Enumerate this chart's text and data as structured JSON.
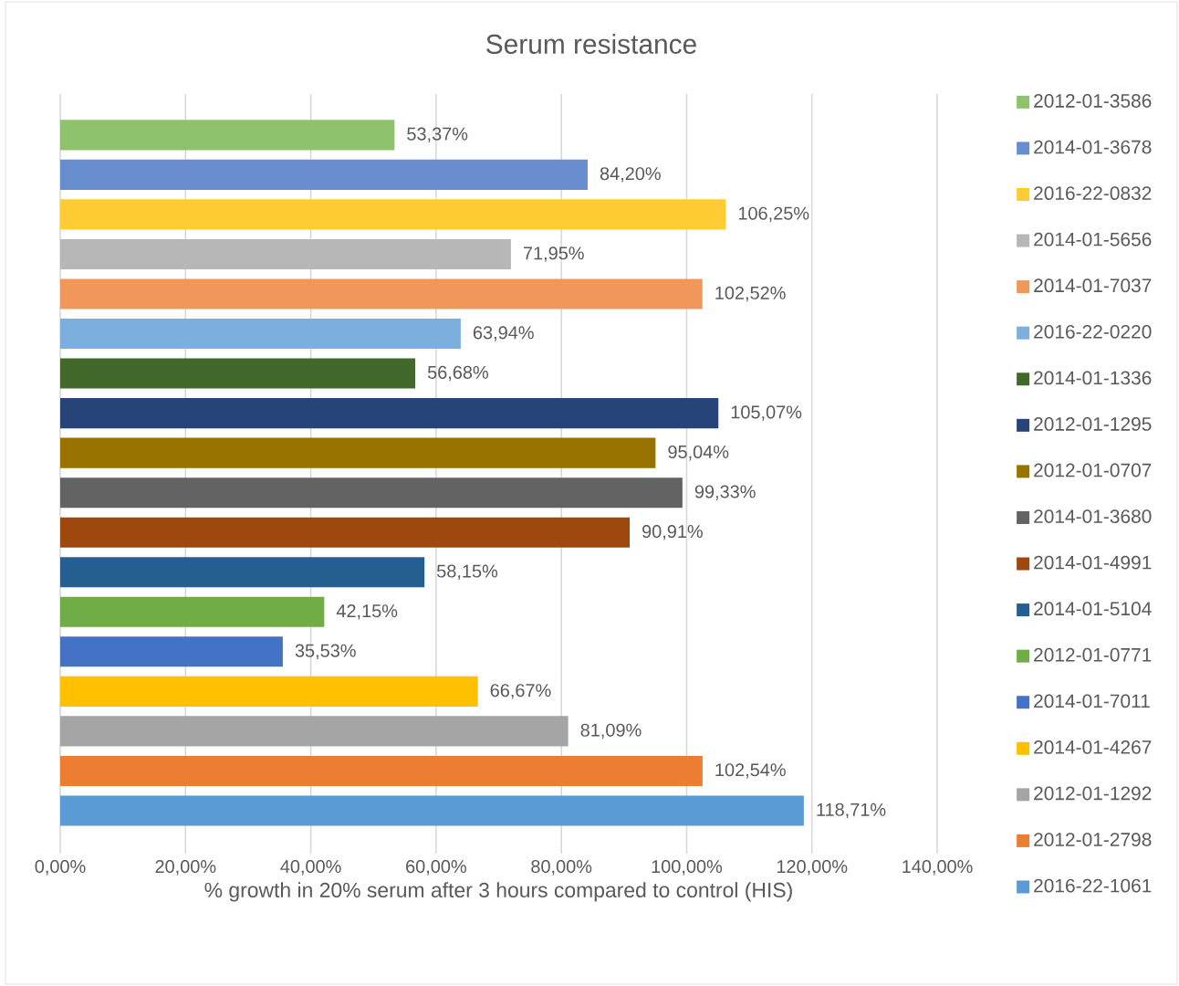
{
  "chart_data": {
    "type": "bar",
    "orientation": "horizontal",
    "title": "Serum resistance",
    "xlabel": "% growth in 20% serum after 3 hours compared to control (HIS)",
    "categories": [
      null
    ],
    "xlim": [
      0,
      140
    ],
    "xticks": [
      {
        "value": 0,
        "label": "0,00%"
      },
      {
        "value": 20,
        "label": "20,00%"
      },
      {
        "value": 40,
        "label": "40,00%"
      },
      {
        "value": 60,
        "label": "60,00%"
      },
      {
        "value": 80,
        "label": "80,00%"
      },
      {
        "value": 100,
        "label": "100,00%"
      },
      {
        "value": 120,
        "label": "120,00%"
      },
      {
        "value": 140,
        "label": "140,00%"
      }
    ],
    "grid": "x",
    "legend": "right",
    "series": [
      {
        "name": "2012-01-3586",
        "color": "#8fc36b",
        "values": [
          53.37
        ],
        "value_labels": [
          "53,37%"
        ]
      },
      {
        "name": "2014-01-3678",
        "color": "#698ed0",
        "values": [
          84.2
        ],
        "value_labels": [
          "84,20%"
        ]
      },
      {
        "name": "2016-22-0832",
        "color": "#ffcd33",
        "values": [
          106.25
        ],
        "value_labels": [
          "106,25%"
        ]
      },
      {
        "name": "2014-01-5656",
        "color": "#b7b7b7",
        "values": [
          71.95
        ],
        "value_labels": [
          "71,95%"
        ]
      },
      {
        "name": "2014-01-7037",
        "color": "#f1975a",
        "values": [
          102.52
        ],
        "value_labels": [
          "102,52%"
        ]
      },
      {
        "name": "2016-22-0220",
        "color": "#7cafdd",
        "values": [
          63.94
        ],
        "value_labels": [
          "63,94%"
        ]
      },
      {
        "name": "2014-01-1336",
        "color": "#43682b",
        "values": [
          56.68
        ],
        "value_labels": [
          "56,68%"
        ]
      },
      {
        "name": "2012-01-1295",
        "color": "#264478",
        "values": [
          105.07
        ],
        "value_labels": [
          "105,07%"
        ]
      },
      {
        "name": "2012-01-0707",
        "color": "#997300",
        "values": [
          95.04
        ],
        "value_labels": [
          "95,04%"
        ]
      },
      {
        "name": "2014-01-3680",
        "color": "#636363",
        "values": [
          99.33
        ],
        "value_labels": [
          "99,33%"
        ]
      },
      {
        "name": "2014-01-4991",
        "color": "#9e480e",
        "values": [
          90.91
        ],
        "value_labels": [
          "90,91%"
        ]
      },
      {
        "name": "2014-01-5104",
        "color": "#255e91",
        "values": [
          58.15
        ],
        "value_labels": [
          "58,15%"
        ]
      },
      {
        "name": "2012-01-0771",
        "color": "#70ad47",
        "values": [
          42.15
        ],
        "value_labels": [
          "42,15%"
        ]
      },
      {
        "name": "2014-01-7011",
        "color": "#4472c4",
        "values": [
          35.53
        ],
        "value_labels": [
          "35,53%"
        ]
      },
      {
        "name": "2014-01-4267",
        "color": "#ffc000",
        "values": [
          66.67
        ],
        "value_labels": [
          "66,67%"
        ]
      },
      {
        "name": "2012-01-1292",
        "color": "#a5a5a5",
        "values": [
          81.09
        ],
        "value_labels": [
          "81,09%"
        ]
      },
      {
        "name": "2012-01-2798",
        "color": "#ed7d31",
        "values": [
          102.54
        ],
        "value_labels": [
          "102,54%"
        ]
      },
      {
        "name": "2016-22-1061",
        "color": "#5b9bd5",
        "values": [
          118.71
        ],
        "value_labels": [
          "118,71%"
        ]
      }
    ]
  }
}
